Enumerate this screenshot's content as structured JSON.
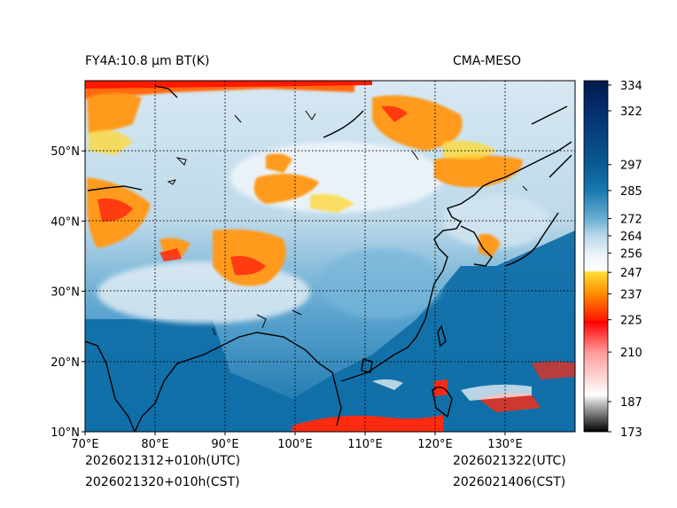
{
  "title_left": "FY4A:10.8 µm BT(K)",
  "title_right": "CMA-MESO",
  "footer": {
    "utc_left": "2026021312+010h(UTC)",
    "cst_left": "2026021320+010h(CST)",
    "utc_right": "2026021322(UTC)",
    "cst_right": "2026021406(CST)"
  },
  "map": {
    "lon_range": [
      70,
      140
    ],
    "lat_range": [
      10,
      60
    ],
    "lon_ticks": [
      "70°E",
      "80°E",
      "90°E",
      "100°E",
      "110°E",
      "120°E",
      "130°E"
    ],
    "lat_ticks": [
      "10°N",
      "20°N",
      "30°N",
      "40°N",
      "50°N"
    ]
  },
  "colorbar": {
    "min": 173,
    "max": 336,
    "ticks": [
      "173",
      "187",
      "210",
      "225",
      "237",
      "247",
      "256",
      "264",
      "272",
      "285",
      "297",
      "322",
      "334"
    ],
    "stops": [
      {
        "v": 173,
        "color": "#000000"
      },
      {
        "v": 187,
        "color": "#cccccc"
      },
      {
        "v": 190,
        "color": "#ffffff"
      },
      {
        "v": 210,
        "color": "#ff9999"
      },
      {
        "v": 224,
        "color": "#ff0000"
      },
      {
        "v": 225,
        "color": "#ff1a00"
      },
      {
        "v": 237,
        "color": "#ff8c00"
      },
      {
        "v": 247,
        "color": "#ffdd33"
      },
      {
        "v": 248,
        "color": "#ffffff"
      },
      {
        "v": 256,
        "color": "#e8f2f8"
      },
      {
        "v": 264,
        "color": "#b8d8ea"
      },
      {
        "v": 272,
        "color": "#6aaed2"
      },
      {
        "v": 285,
        "color": "#1a78b0"
      },
      {
        "v": 297,
        "color": "#0a5a92"
      },
      {
        "v": 322,
        "color": "#062e6e"
      },
      {
        "v": 336,
        "color": "#001a4d"
      }
    ]
  },
  "colors": {
    "ocean": "#106fa8",
    "land_warm": "#4f9fcc",
    "cloud_white": "#e8f2f8",
    "cloud_cold": "#ff9a1a",
    "cloud_very_cold": "#ff2a10",
    "coast": "#000000"
  }
}
